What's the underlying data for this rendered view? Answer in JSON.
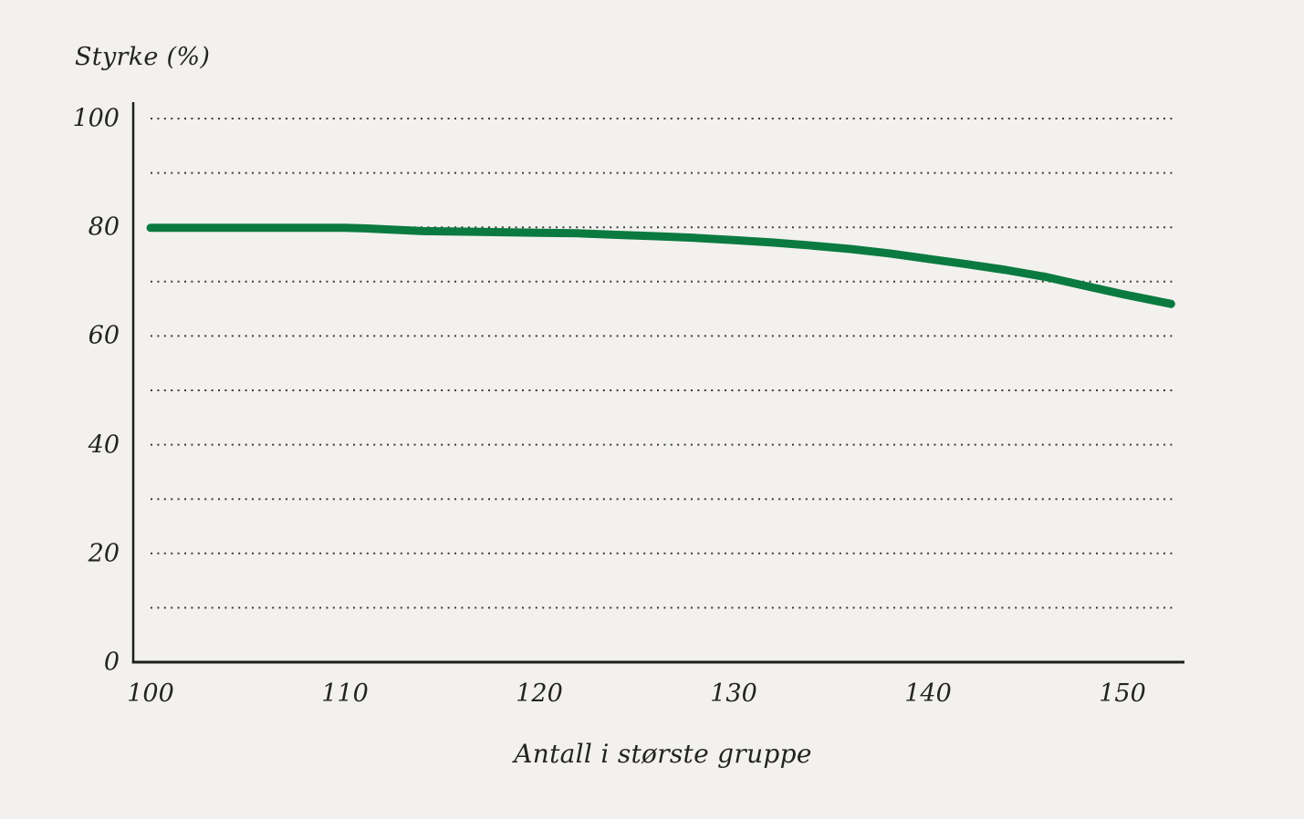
{
  "page": {
    "background_color": "#f2f1ee",
    "text_color": "#232320"
  },
  "chart_data": {
    "type": "line",
    "title": "",
    "ylabel": "Styrke (%)",
    "xlabel": "Antall i største gruppe",
    "xlim": [
      99.2,
      153.2
    ],
    "ylim": [
      0,
      100
    ],
    "x_ticks": [
      100,
      110,
      120,
      130,
      140,
      150
    ],
    "y_ticks": [
      0,
      20,
      40,
      60,
      80,
      100
    ],
    "y_grid_values": [
      10,
      20,
      30,
      40,
      50,
      60,
      70,
      80,
      90,
      100
    ],
    "grid": "horizontal dotted lines every 10 units, no vertical grid",
    "legend": "none",
    "axis_color": "#1d1d1b",
    "grid_dot_color": "#3a3a38",
    "series": [
      {
        "name": "Styrke",
        "color": "#0b7a40",
        "points": [
          [
            100,
            79.9
          ],
          [
            102,
            79.9
          ],
          [
            104,
            79.9
          ],
          [
            106,
            79.9
          ],
          [
            108,
            79.9
          ],
          [
            110,
            79.9
          ],
          [
            111,
            79.8
          ],
          [
            114,
            79.3
          ],
          [
            117,
            79.15
          ],
          [
            120,
            79.0
          ],
          [
            122,
            78.9
          ],
          [
            124,
            78.6
          ],
          [
            126,
            78.35
          ],
          [
            128,
            78.05
          ],
          [
            130,
            77.65
          ],
          [
            132,
            77.2
          ],
          [
            134,
            76.65
          ],
          [
            136,
            76.0
          ],
          [
            138,
            75.2
          ],
          [
            140,
            74.2
          ],
          [
            142,
            73.2
          ],
          [
            144,
            72.15
          ],
          [
            146,
            70.9
          ],
          [
            148,
            69.3
          ],
          [
            150,
            67.7
          ],
          [
            152.5,
            65.9
          ]
        ]
      }
    ]
  }
}
